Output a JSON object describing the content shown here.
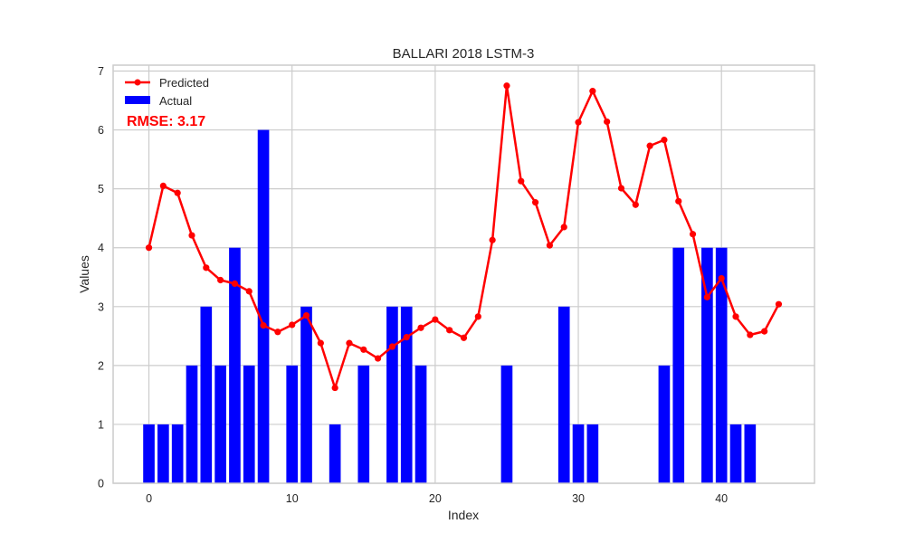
{
  "chart_data": {
    "type": "bar",
    "title": "BALLARI 2018 LSTM-3",
    "xlabel": "Index",
    "ylabel": "Values",
    "xlim": [
      -2.5,
      46.5
    ],
    "ylim": [
      0,
      7.1
    ],
    "xticks": [
      0,
      10,
      20,
      30,
      40
    ],
    "yticks": [
      0,
      1,
      2,
      3,
      4,
      5,
      6,
      7
    ],
    "grid": true,
    "legend_position": "top-left",
    "annotation": "RMSE: 3.17",
    "series": [
      {
        "name": "Predicted",
        "type": "line",
        "color": "#ff0000",
        "x": [
          0,
          1,
          2,
          3,
          4,
          5,
          6,
          7,
          8,
          9,
          10,
          11,
          12,
          13,
          14,
          15,
          16,
          17,
          18,
          19,
          20,
          21,
          22,
          23,
          24,
          25,
          26,
          27,
          28,
          29,
          30,
          31,
          32,
          33,
          34,
          35,
          36,
          37,
          38,
          39,
          40,
          41,
          42,
          43,
          44
        ],
        "values": [
          4.0,
          5.05,
          4.93,
          4.21,
          3.66,
          3.45,
          3.39,
          3.26,
          2.68,
          2.57,
          2.69,
          2.85,
          2.38,
          1.62,
          2.38,
          2.27,
          2.12,
          2.32,
          2.48,
          2.64,
          2.78,
          2.6,
          2.47,
          2.83,
          4.13,
          6.75,
          5.13,
          4.77,
          4.04,
          4.35,
          6.13,
          6.66,
          6.14,
          5.01,
          4.73,
          5.73,
          5.83,
          4.79,
          4.23,
          3.16,
          3.48,
          2.83,
          2.52,
          2.58,
          3.04
        ]
      },
      {
        "name": "Actual",
        "type": "bar",
        "color": "#0000ff",
        "x": [
          0,
          1,
          2,
          3,
          4,
          5,
          6,
          7,
          8,
          9,
          10,
          11,
          12,
          13,
          14,
          15,
          16,
          17,
          18,
          19,
          20,
          21,
          22,
          23,
          24,
          25,
          26,
          27,
          28,
          29,
          30,
          31,
          32,
          33,
          34,
          35,
          36,
          37,
          38,
          39,
          40,
          41,
          42
        ],
        "values": [
          1,
          1,
          1,
          2,
          3,
          2,
          4,
          2,
          6,
          0,
          2,
          3,
          0,
          1,
          0,
          2,
          0,
          3,
          3,
          2,
          0,
          0,
          0,
          0,
          0,
          2,
          0,
          0,
          0,
          3,
          1,
          1,
          0,
          0,
          0,
          0,
          2,
          4,
          0,
          4,
          4,
          1,
          1
        ]
      }
    ]
  }
}
